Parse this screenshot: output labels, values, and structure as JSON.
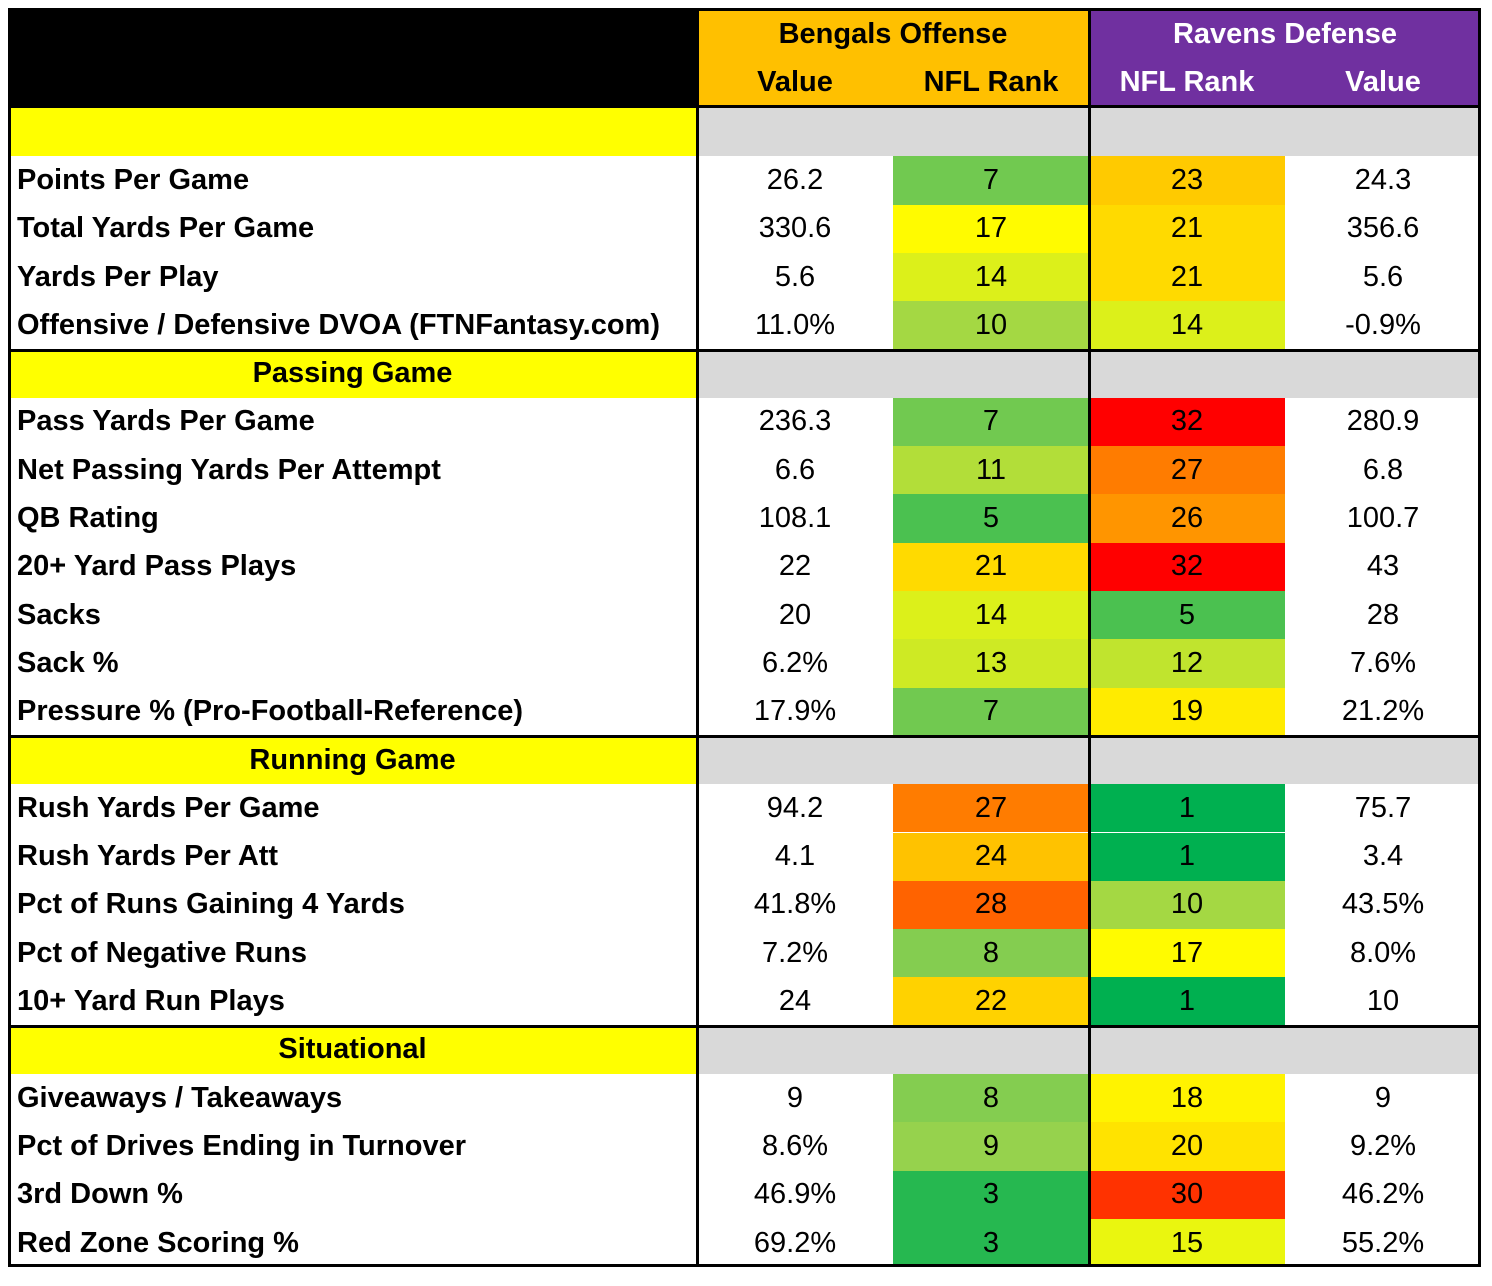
{
  "header": {
    "offense_team": "Bengals Offense",
    "defense_team": "Ravens Defense",
    "col_off_value": "Value",
    "col_off_rank": "NFL Rank",
    "col_def_rank": "NFL Rank",
    "col_def_value": "Value"
  },
  "colors": {
    "offense_header": "#ffc000",
    "defense_header": "#7030a0",
    "defense_header_text": "#ffffff",
    "section_label_bg": "#ffff00",
    "section_fill_bg": "#d9d9d9",
    "corner_bg": "#000000",
    "rank_scale": [
      "#00b050",
      "#92d050",
      "#ffff00",
      "#ffc000",
      "#ff0000"
    ]
  },
  "sections": [
    {
      "title": "",
      "rows": [
        {
          "label": "Points Per Game",
          "off_value": "26.2",
          "off_rank": "7",
          "def_rank": "23",
          "def_value": "24.3"
        },
        {
          "label": "Total Yards Per Game",
          "off_value": "330.6",
          "off_rank": "17",
          "def_rank": "21",
          "def_value": "356.6"
        },
        {
          "label": "Yards Per Play",
          "off_value": "5.6",
          "off_rank": "14",
          "def_rank": "21",
          "def_value": "5.6"
        },
        {
          "label": "Offensive / Defensive DVOA (FTNFantasy.com)",
          "off_value": "11.0%",
          "off_rank": "10",
          "def_rank": "14",
          "def_value": "-0.9%"
        }
      ]
    },
    {
      "title": "Passing Game",
      "rows": [
        {
          "label": "Pass Yards Per Game",
          "off_value": "236.3",
          "off_rank": "7",
          "def_rank": "32",
          "def_value": "280.9"
        },
        {
          "label": "Net Passing Yards Per Attempt",
          "off_value": "6.6",
          "off_rank": "11",
          "def_rank": "27",
          "def_value": "6.8"
        },
        {
          "label": "QB Rating",
          "off_value": "108.1",
          "off_rank": "5",
          "def_rank": "26",
          "def_value": "100.7"
        },
        {
          "label": "20+ Yard Pass Plays",
          "off_value": "22",
          "off_rank": "21",
          "def_rank": "32",
          "def_value": "43"
        },
        {
          "label": "Sacks",
          "off_value": "20",
          "off_rank": "14",
          "def_rank": "5",
          "def_value": "28"
        },
        {
          "label": "Sack %",
          "off_value": "6.2%",
          "off_rank": "13",
          "def_rank": "12",
          "def_value": "7.6%"
        },
        {
          "label": "Pressure % (Pro-Football-Reference)",
          "off_value": "17.9%",
          "off_rank": "7",
          "def_rank": "19",
          "def_value": "21.2%"
        }
      ]
    },
    {
      "title": "Running Game",
      "rows": [
        {
          "label": "Rush Yards Per Game",
          "off_value": "94.2",
          "off_rank": "27",
          "def_rank": "1",
          "def_value": "75.7"
        },
        {
          "label": "Rush Yards Per Att",
          "off_value": "4.1",
          "off_rank": "24",
          "def_rank": "1",
          "def_value": "3.4"
        },
        {
          "label": "Pct of Runs Gaining 4 Yards",
          "off_value": "41.8%",
          "off_rank": "28",
          "def_rank": "10",
          "def_value": "43.5%"
        },
        {
          "label": "Pct of Negative Runs",
          "off_value": "7.2%",
          "off_rank": "8",
          "def_rank": "17",
          "def_value": "8.0%"
        },
        {
          "label": "10+ Yard Run Plays",
          "off_value": "24",
          "off_rank": "22",
          "def_rank": "1",
          "def_value": "10"
        }
      ]
    },
    {
      "title": "Situational",
      "rows": [
        {
          "label": "Giveaways / Takeaways",
          "off_value": "9",
          "off_rank": "8",
          "def_rank": "18",
          "def_value": "9"
        },
        {
          "label": "Pct of Drives Ending in Turnover",
          "off_value": "8.6%",
          "off_rank": "9",
          "def_rank": "20",
          "def_value": "9.2%"
        },
        {
          "label": "3rd Down %",
          "off_value": "46.9%",
          "off_rank": "3",
          "def_rank": "30",
          "def_value": "46.2%"
        },
        {
          "label": "Red Zone Scoring %",
          "off_value": "69.2%",
          "off_rank": "3",
          "def_rank": "15",
          "def_value": "55.2%"
        }
      ]
    }
  ]
}
